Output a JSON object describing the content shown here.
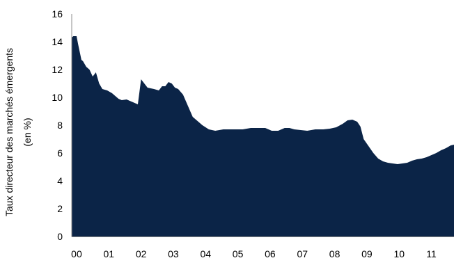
{
  "chart_data": {
    "type": "area",
    "title": "",
    "ylabel_line1": "Taux directeur des marchés émergents",
    "ylabel_line2": "(en %)",
    "xlabel": "",
    "ylim": [
      0,
      16
    ],
    "y_ticks": [
      "0",
      "2",
      "4",
      "6",
      "8",
      "10",
      "12",
      "14",
      "16"
    ],
    "x_tick_labels": [
      "00",
      "01",
      "02",
      "03",
      "04",
      "05",
      "06",
      "07",
      "08",
      "09",
      "10",
      "11"
    ],
    "xlim": [
      2000.0,
      2011.85
    ],
    "grid": false,
    "legend": "none",
    "fill_color": "#0b2447",
    "axis_color": "#8c8c8c",
    "series": [
      {
        "x": [
          2000.0,
          2000.05,
          2000.15,
          2000.2,
          2000.3,
          2000.35,
          2000.45,
          2000.55,
          2000.65,
          2000.75,
          2000.85,
          2000.95,
          2001.1,
          2001.25,
          2001.35,
          2001.45,
          2001.55,
          2001.7,
          2001.85,
          2001.95,
          2002.05,
          2002.15,
          2002.35,
          2002.55,
          2002.7,
          2002.8,
          2002.9,
          2003.0,
          2003.1,
          2003.2,
          2003.3,
          2003.45,
          2003.6,
          2003.75,
          2003.9,
          2004.05,
          2004.25,
          2004.45,
          2004.7,
          2004.9,
          2005.1,
          2005.3,
          2005.55,
          2005.8,
          2006.0,
          2006.2,
          2006.4,
          2006.6,
          2006.75,
          2006.9,
          2007.1,
          2007.3,
          2007.55,
          2007.8,
          2008.0,
          2008.2,
          2008.4,
          2008.55,
          2008.7,
          2008.85,
          2008.95,
          2009.05,
          2009.2,
          2009.35,
          2009.5,
          2009.65,
          2009.8,
          2009.95,
          2010.1,
          2010.25,
          2010.4,
          2010.55,
          2010.7,
          2010.85,
          2011.0,
          2011.15,
          2011.3,
          2011.45,
          2011.6,
          2011.75,
          2011.85
        ],
        "values": [
          14.3,
          14.4,
          14.4,
          13.8,
          12.7,
          12.6,
          12.2,
          12.0,
          11.5,
          11.8,
          11.0,
          10.6,
          10.5,
          10.3,
          10.1,
          9.9,
          9.8,
          9.85,
          9.7,
          9.6,
          9.5,
          11.3,
          10.7,
          10.6,
          10.5,
          10.8,
          10.8,
          11.1,
          11.0,
          10.7,
          10.6,
          10.2,
          9.4,
          8.6,
          8.3,
          8.0,
          7.7,
          7.6,
          7.7,
          7.7,
          7.7,
          7.7,
          7.8,
          7.8,
          7.8,
          7.6,
          7.6,
          7.8,
          7.8,
          7.7,
          7.65,
          7.6,
          7.7,
          7.7,
          7.75,
          7.85,
          8.1,
          8.35,
          8.4,
          8.25,
          7.9,
          7.0,
          6.5,
          6.0,
          5.6,
          5.4,
          5.3,
          5.25,
          5.2,
          5.25,
          5.3,
          5.45,
          5.55,
          5.6,
          5.7,
          5.85,
          6.0,
          6.2,
          6.35,
          6.55,
          6.6
        ]
      }
    ]
  }
}
